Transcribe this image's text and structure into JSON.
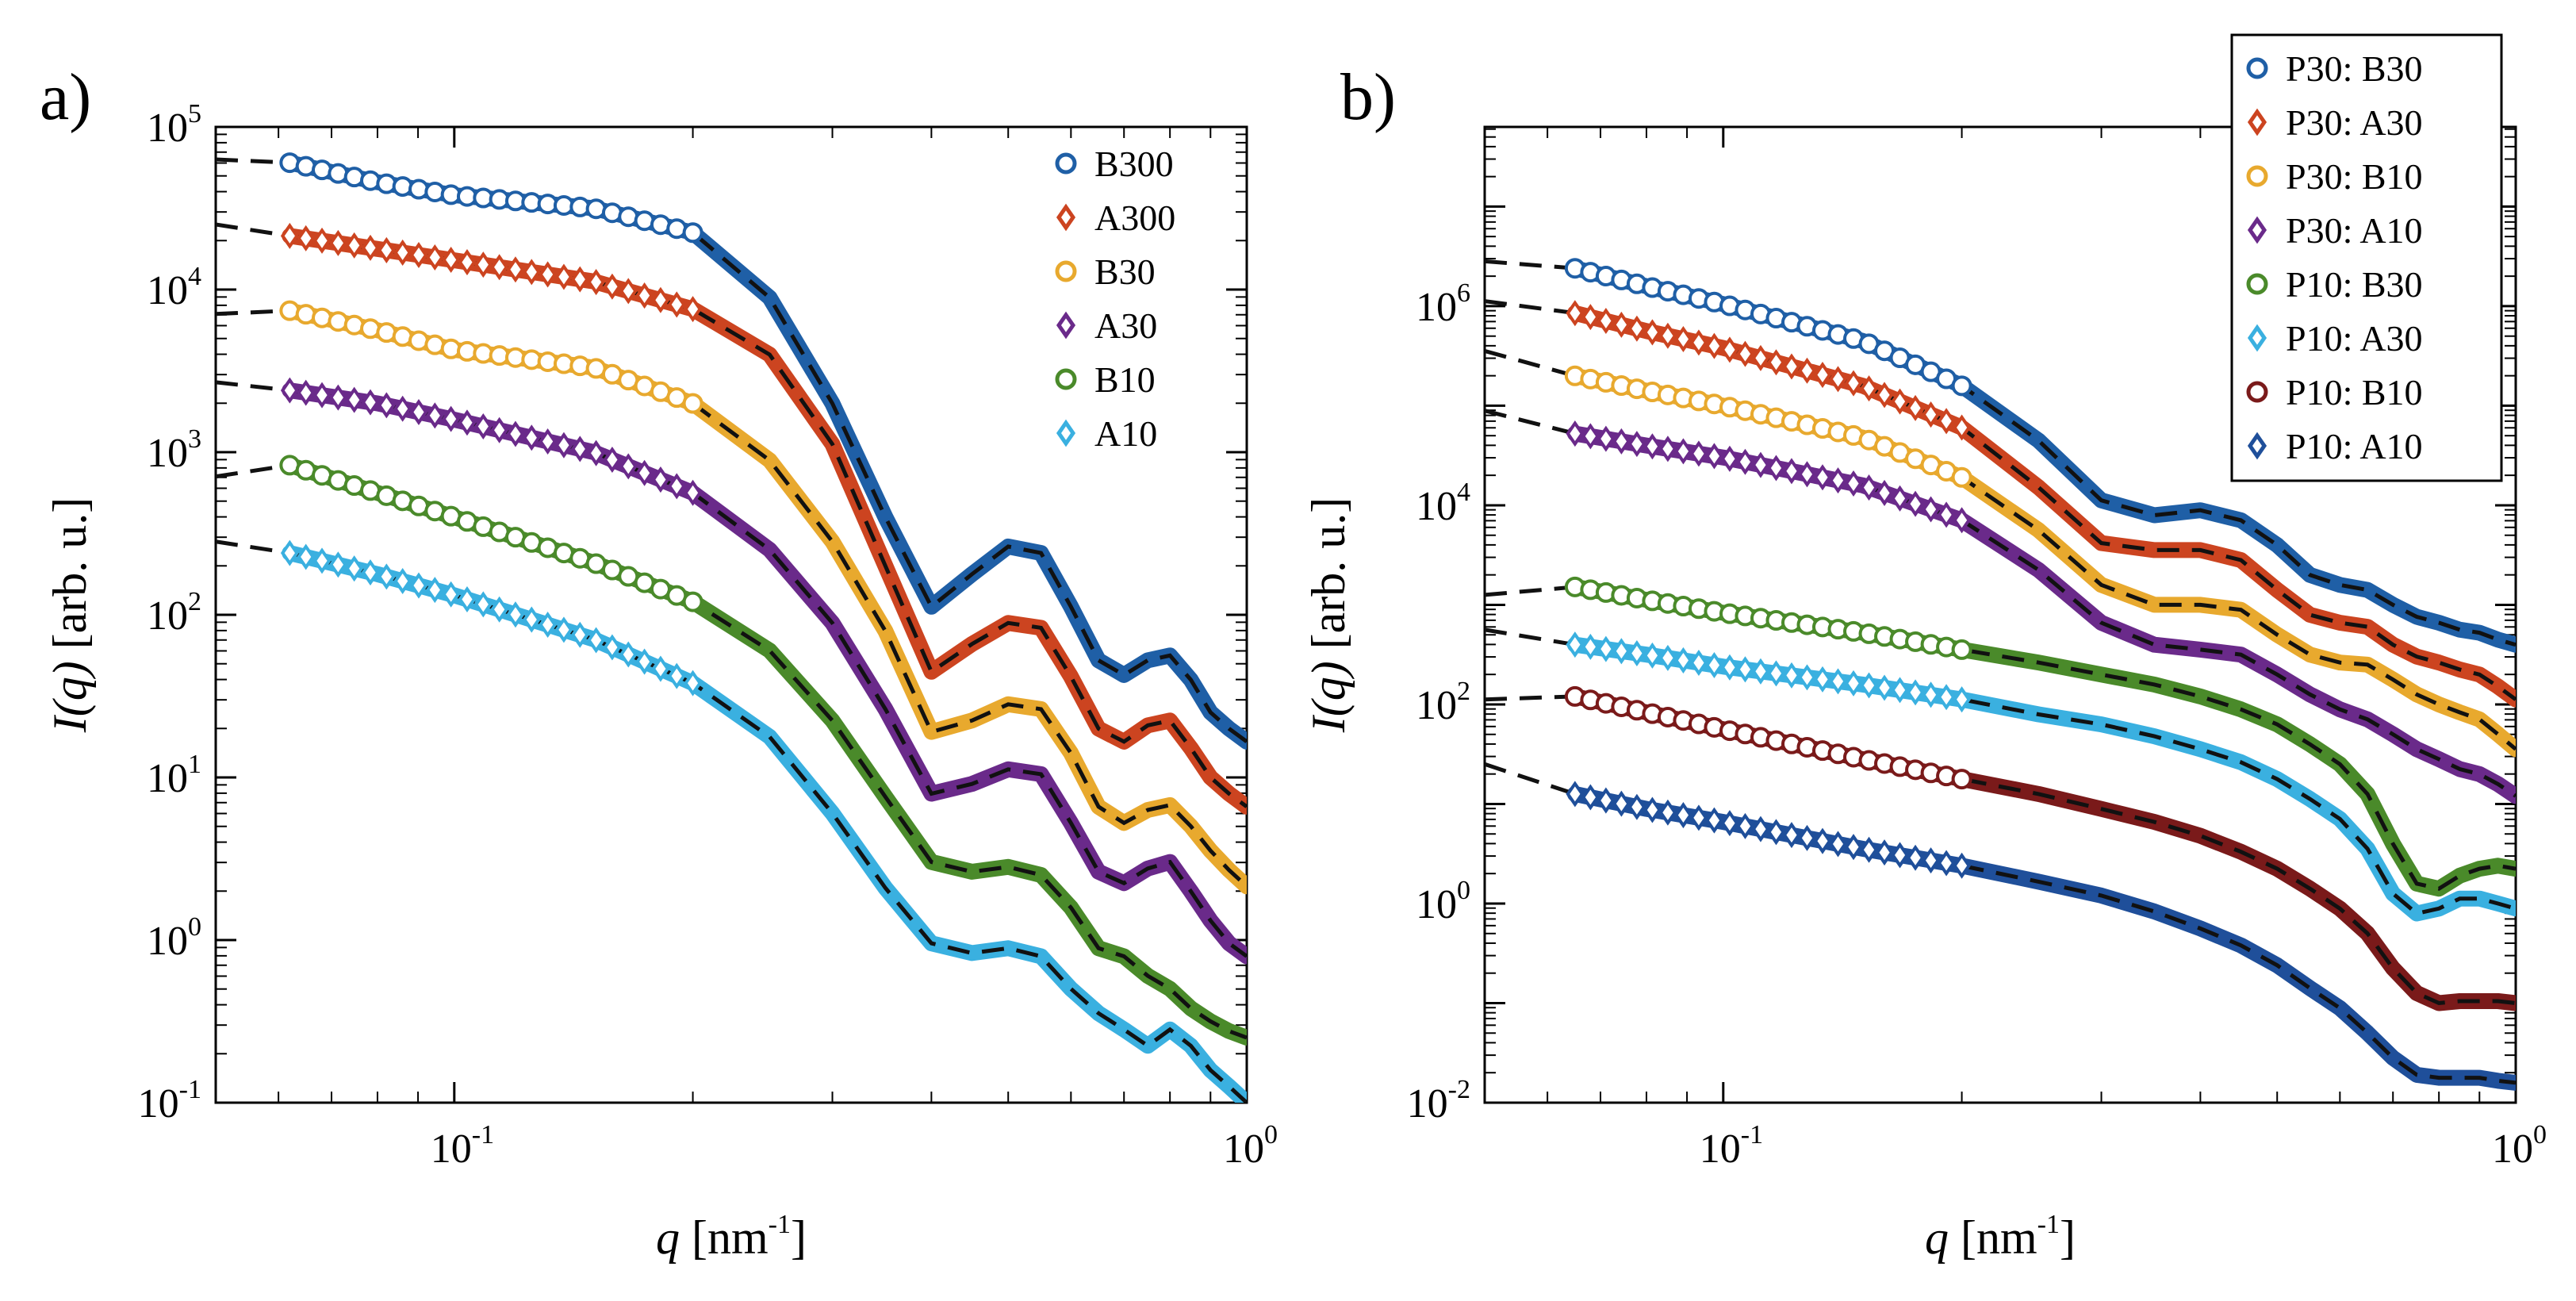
{
  "figure": {
    "panel_labels": [
      "a)",
      "b)"
    ]
  },
  "chart_data": [
    {
      "type": "scatter",
      "panel": "a)",
      "xlabel_var": "q",
      "xlabel_unit": "[nm",
      "xlabel_unit_exp": "-1",
      "xlabel_unit_close": "]",
      "ylabel_var": "I(q)",
      "ylabel_unit": "[arb. u.]",
      "x_scale": "log",
      "y_scale": "log",
      "xlim": [
        0.05,
        1.0
      ],
      "ylim_exp": [
        -1,
        5
      ],
      "xticks": [
        {
          "base": "10",
          "exp": "-1",
          "value": 0.1
        },
        {
          "base": "10",
          "exp": "0",
          "value": 1.0
        }
      ],
      "yticks": [
        {
          "base": "10",
          "exp": "-1",
          "value": -1
        },
        {
          "base": "10",
          "exp": "0",
          "value": 0
        },
        {
          "base": "10",
          "exp": "1",
          "value": 1
        },
        {
          "base": "10",
          "exp": "2",
          "value": 2
        },
        {
          "base": "10",
          "exp": "3",
          "value": 3
        },
        {
          "base": "10",
          "exp": "4",
          "value": 4
        },
        {
          "base": "10",
          "exp": "5",
          "value": 5
        }
      ],
      "legend": {
        "position": "top-right",
        "framed": false
      },
      "fit_style": "black dashed",
      "series": [
        {
          "name": "B300",
          "marker": "circle",
          "color": "#1f5fa6",
          "fit_start_log10": 4.8,
          "x": [
            0.062,
            0.08,
            0.1,
            0.15,
            0.2,
            0.25,
            0.3,
            0.35,
            0.4,
            0.45,
            0.5,
            0.55,
            0.6,
            0.65,
            0.7,
            0.75,
            0.8,
            0.85,
            0.9,
            0.95,
            1.0
          ],
          "log10y": [
            4.78,
            4.66,
            4.58,
            4.5,
            4.35,
            3.95,
            3.3,
            2.6,
            2.05,
            2.25,
            2.42,
            2.38,
            2.05,
            1.72,
            1.63,
            1.72,
            1.75,
            1.6,
            1.4,
            1.3,
            1.22
          ]
        },
        {
          "name": "A300",
          "marker": "diamond",
          "color": "#cc4420",
          "fit_start_log10": 4.4,
          "x": [
            0.062,
            0.08,
            0.1,
            0.15,
            0.2,
            0.25,
            0.3,
            0.35,
            0.4,
            0.45,
            0.5,
            0.55,
            0.6,
            0.65,
            0.7,
            0.75,
            0.8,
            0.85,
            0.9,
            0.95,
            1.0
          ],
          "log10y": [
            4.33,
            4.25,
            4.18,
            4.05,
            3.88,
            3.6,
            3.05,
            2.3,
            1.65,
            1.82,
            1.95,
            1.92,
            1.62,
            1.3,
            1.22,
            1.32,
            1.35,
            1.18,
            1.0,
            0.9,
            0.82
          ]
        },
        {
          "name": "B30",
          "marker": "circle",
          "color": "#e8a92e",
          "fit_start_log10": 3.85,
          "x": [
            0.062,
            0.08,
            0.1,
            0.15,
            0.2,
            0.25,
            0.3,
            0.35,
            0.4,
            0.45,
            0.5,
            0.55,
            0.6,
            0.65,
            0.7,
            0.75,
            0.8,
            0.85,
            0.9,
            0.95,
            1.0
          ],
          "log10y": [
            3.87,
            3.75,
            3.63,
            3.52,
            3.3,
            2.95,
            2.45,
            1.9,
            1.28,
            1.35,
            1.45,
            1.42,
            1.15,
            0.82,
            0.72,
            0.8,
            0.83,
            0.7,
            0.55,
            0.43,
            0.33
          ]
        },
        {
          "name": "A30",
          "marker": "diamond",
          "color": "#6a2a8a",
          "fit_start_log10": 3.43,
          "x": [
            0.062,
            0.08,
            0.1,
            0.15,
            0.2,
            0.25,
            0.3,
            0.35,
            0.4,
            0.45,
            0.5,
            0.55,
            0.6,
            0.65,
            0.7,
            0.75,
            0.8,
            0.85,
            0.9,
            0.95,
            1.0
          ],
          "log10y": [
            3.38,
            3.3,
            3.2,
            3.0,
            2.75,
            2.4,
            1.95,
            1.42,
            0.9,
            0.96,
            1.05,
            1.02,
            0.72,
            0.42,
            0.35,
            0.44,
            0.48,
            0.3,
            0.12,
            -0.02,
            -0.1
          ]
        },
        {
          "name": "B10",
          "marker": "circle",
          "color": "#4a8a2a",
          "fit_start_log10": 2.85,
          "x": [
            0.062,
            0.08,
            0.1,
            0.15,
            0.2,
            0.25,
            0.3,
            0.35,
            0.4,
            0.45,
            0.5,
            0.55,
            0.6,
            0.65,
            0.7,
            0.75,
            0.8,
            0.85,
            0.9,
            0.95,
            1.0
          ],
          "log10y": [
            2.92,
            2.75,
            2.6,
            2.32,
            2.08,
            1.78,
            1.35,
            0.88,
            0.48,
            0.42,
            0.45,
            0.4,
            0.2,
            -0.05,
            -0.1,
            -0.22,
            -0.3,
            -0.42,
            -0.5,
            -0.56,
            -0.6
          ]
        },
        {
          "name": "A10",
          "marker": "diamond",
          "color": "#3ab0e0",
          "fit_start_log10": 2.45,
          "x": [
            0.062,
            0.08,
            0.1,
            0.15,
            0.2,
            0.25,
            0.3,
            0.35,
            0.4,
            0.45,
            0.5,
            0.55,
            0.6,
            0.65,
            0.7,
            0.75,
            0.8,
            0.85,
            0.9,
            0.95,
            1.0
          ],
          "log10y": [
            2.38,
            2.25,
            2.12,
            1.85,
            1.58,
            1.25,
            0.78,
            0.32,
            -0.02,
            -0.08,
            -0.05,
            -0.1,
            -0.3,
            -0.45,
            -0.55,
            -0.65,
            -0.55,
            -0.65,
            -0.8,
            -0.9,
            -1.0
          ]
        }
      ]
    },
    {
      "type": "scatter",
      "panel": "b)",
      "xlabel_var": "q",
      "xlabel_unit": "[nm",
      "xlabel_unit_exp": "-1",
      "xlabel_unit_close": "]",
      "ylabel_var": "I(q)",
      "ylabel_unit": "[arb. u.]",
      "x_scale": "log",
      "y_scale": "log",
      "xlim": [
        0.05,
        1.0
      ],
      "ylim_exp": [
        -2,
        7.8
      ],
      "xticks": [
        {
          "base": "10",
          "exp": "-1",
          "value": 0.1
        },
        {
          "base": "10",
          "exp": "0",
          "value": 1.0
        }
      ],
      "yticks": [
        {
          "base": "10",
          "exp": "-2",
          "value": -2
        },
        {
          "base": "10",
          "exp": "0",
          "value": 0
        },
        {
          "base": "10",
          "exp": "2",
          "value": 2
        },
        {
          "base": "10",
          "exp": "4",
          "value": 4
        },
        {
          "base": "10",
          "exp": "6",
          "value": 6
        }
      ],
      "legend": {
        "position": "top-right",
        "framed": true
      },
      "fit_style": "black dashed",
      "series": [
        {
          "name": "P30: B30",
          "marker": "circle",
          "color": "#1f5fa6",
          "fit_start_log10": 6.45,
          "x": [
            0.065,
            0.08,
            0.1,
            0.15,
            0.2,
            0.25,
            0.3,
            0.35,
            0.4,
            0.45,
            0.5,
            0.55,
            0.6,
            0.65,
            0.7,
            0.75,
            0.8,
            0.85,
            0.9,
            0.95,
            1.0
          ],
          "log10y": [
            6.38,
            6.2,
            6.02,
            5.65,
            5.2,
            4.65,
            4.05,
            3.9,
            3.95,
            3.85,
            3.6,
            3.3,
            3.2,
            3.15,
            3.0,
            2.88,
            2.82,
            2.75,
            2.72,
            2.65,
            2.6
          ]
        },
        {
          "name": "P30: A30",
          "marker": "diamond",
          "color": "#cc4420",
          "fit_start_log10": 6.05,
          "x": [
            0.065,
            0.08,
            0.1,
            0.15,
            0.2,
            0.25,
            0.3,
            0.35,
            0.4,
            0.45,
            0.5,
            0.55,
            0.6,
            0.65,
            0.7,
            0.75,
            0.8,
            0.85,
            0.9,
            0.95,
            1.0
          ],
          "log10y": [
            5.93,
            5.75,
            5.58,
            5.2,
            4.78,
            4.18,
            3.62,
            3.55,
            3.55,
            3.45,
            3.15,
            2.9,
            2.82,
            2.78,
            2.6,
            2.48,
            2.42,
            2.35,
            2.3,
            2.18,
            2.05
          ]
        },
        {
          "name": "P30: B10",
          "marker": "circle",
          "color": "#e8a92e",
          "fit_start_log10": 5.55,
          "x": [
            0.065,
            0.08,
            0.1,
            0.15,
            0.2,
            0.25,
            0.3,
            0.35,
            0.4,
            0.45,
            0.5,
            0.55,
            0.6,
            0.65,
            0.7,
            0.75,
            0.8,
            0.85,
            0.9,
            0.95,
            1.0
          ],
          "log10y": [
            5.3,
            5.15,
            5.0,
            4.68,
            4.28,
            3.75,
            3.2,
            3.0,
            3.0,
            2.95,
            2.7,
            2.5,
            2.42,
            2.4,
            2.25,
            2.1,
            2.0,
            1.92,
            1.85,
            1.7,
            1.55
          ]
        },
        {
          "name": "P30: A10",
          "marker": "diamond",
          "color": "#6a2a8a",
          "fit_start_log10": 4.95,
          "x": [
            0.065,
            0.08,
            0.1,
            0.15,
            0.2,
            0.25,
            0.3,
            0.35,
            0.4,
            0.45,
            0.5,
            0.55,
            0.6,
            0.65,
            0.7,
            0.75,
            0.8,
            0.85,
            0.9,
            0.95,
            1.0
          ],
          "log10y": [
            4.72,
            4.6,
            4.48,
            4.2,
            3.85,
            3.35,
            2.82,
            2.6,
            2.55,
            2.5,
            2.3,
            2.1,
            1.95,
            1.85,
            1.7,
            1.55,
            1.45,
            1.35,
            1.3,
            1.2,
            1.08
          ]
        },
        {
          "name": "P10: B30",
          "marker": "circle",
          "color": "#4a8a2a",
          "fit_start_log10": 3.1,
          "x": [
            0.065,
            0.08,
            0.1,
            0.15,
            0.2,
            0.25,
            0.3,
            0.35,
            0.4,
            0.45,
            0.5,
            0.55,
            0.6,
            0.65,
            0.7,
            0.75,
            0.8,
            0.85,
            0.9,
            0.95,
            1.0
          ],
          "log10y": [
            3.18,
            3.05,
            2.92,
            2.72,
            2.55,
            2.42,
            2.3,
            2.2,
            2.08,
            1.95,
            1.8,
            1.6,
            1.4,
            1.1,
            0.6,
            0.2,
            0.15,
            0.28,
            0.35,
            0.38,
            0.35
          ]
        },
        {
          "name": "P10: A30",
          "marker": "diamond",
          "color": "#3ab0e0",
          "fit_start_log10": 2.75,
          "x": [
            0.065,
            0.08,
            0.1,
            0.15,
            0.2,
            0.25,
            0.3,
            0.35,
            0.4,
            0.45,
            0.5,
            0.55,
            0.6,
            0.65,
            0.7,
            0.75,
            0.8,
            0.85,
            0.9,
            0.95,
            1.0
          ],
          "log10y": [
            2.6,
            2.5,
            2.38,
            2.2,
            2.05,
            1.9,
            1.8,
            1.68,
            1.55,
            1.42,
            1.25,
            1.05,
            0.85,
            0.55,
            0.1,
            -0.1,
            -0.05,
            0.05,
            0.05,
            0.0,
            -0.05
          ]
        },
        {
          "name": "P10: B10",
          "marker": "circle",
          "color": "#7a1a1a",
          "fit_start_log10": 2.05,
          "x": [
            0.065,
            0.08,
            0.1,
            0.15,
            0.2,
            0.25,
            0.3,
            0.35,
            0.4,
            0.45,
            0.5,
            0.55,
            0.6,
            0.65,
            0.7,
            0.75,
            0.8,
            0.85,
            0.9,
            0.95,
            1.0
          ],
          "log10y": [
            2.08,
            1.92,
            1.75,
            1.45,
            1.25,
            1.1,
            0.95,
            0.82,
            0.68,
            0.52,
            0.35,
            0.15,
            -0.05,
            -0.3,
            -0.65,
            -0.9,
            -1.0,
            -0.98,
            -0.98,
            -0.98,
            -1.0
          ]
        },
        {
          "name": "P10: A10",
          "marker": "diamond",
          "color": "#1f4f9a",
          "fit_start_log10": 1.4,
          "x": [
            0.065,
            0.08,
            0.1,
            0.15,
            0.2,
            0.25,
            0.3,
            0.35,
            0.4,
            0.45,
            0.5,
            0.55,
            0.6,
            0.65,
            0.7,
            0.75,
            0.8,
            0.85,
            0.9,
            0.95,
            1.0
          ],
          "log10y": [
            1.1,
            0.95,
            0.82,
            0.55,
            0.38,
            0.22,
            0.08,
            -0.08,
            -0.25,
            -0.42,
            -0.62,
            -0.85,
            -1.05,
            -1.3,
            -1.55,
            -1.72,
            -1.75,
            -1.75,
            -1.75,
            -1.78,
            -1.8
          ]
        }
      ]
    }
  ]
}
